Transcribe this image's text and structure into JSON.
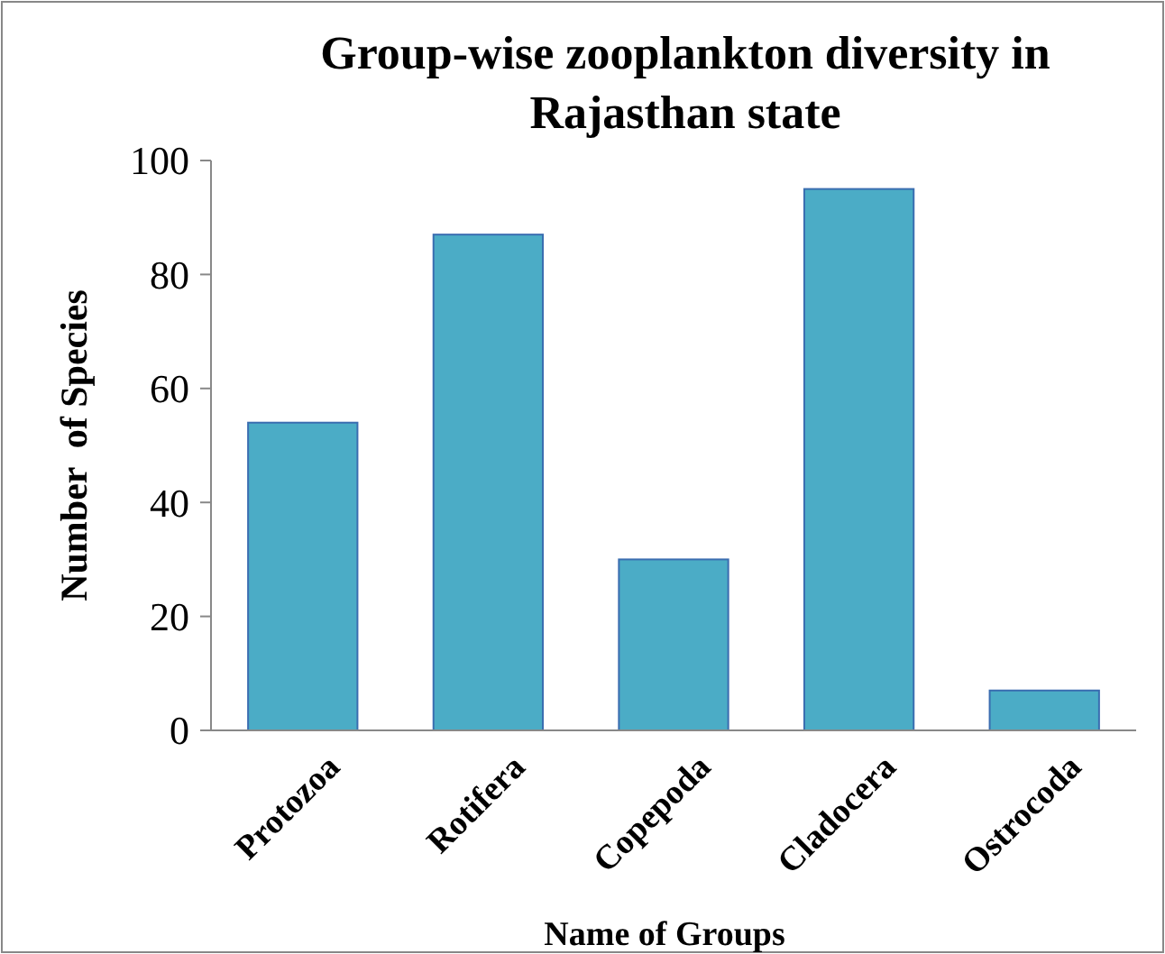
{
  "chart_data": {
    "type": "bar",
    "title": "Group-wise zooplankton diversity in Rajasthan state",
    "xlabel": "Name of Groups",
    "ylabel": "Number  of Species",
    "categories": [
      "Protozoa",
      "Rotifera",
      "Copepoda",
      "Cladocera",
      "Ostrocoda"
    ],
    "values": [
      54,
      87,
      30,
      95,
      7
    ],
    "color": "#4bacc6",
    "ylim": [
      0,
      100
    ],
    "yticks": [
      0,
      20,
      40,
      60,
      80,
      100
    ],
    "grid": false
  }
}
